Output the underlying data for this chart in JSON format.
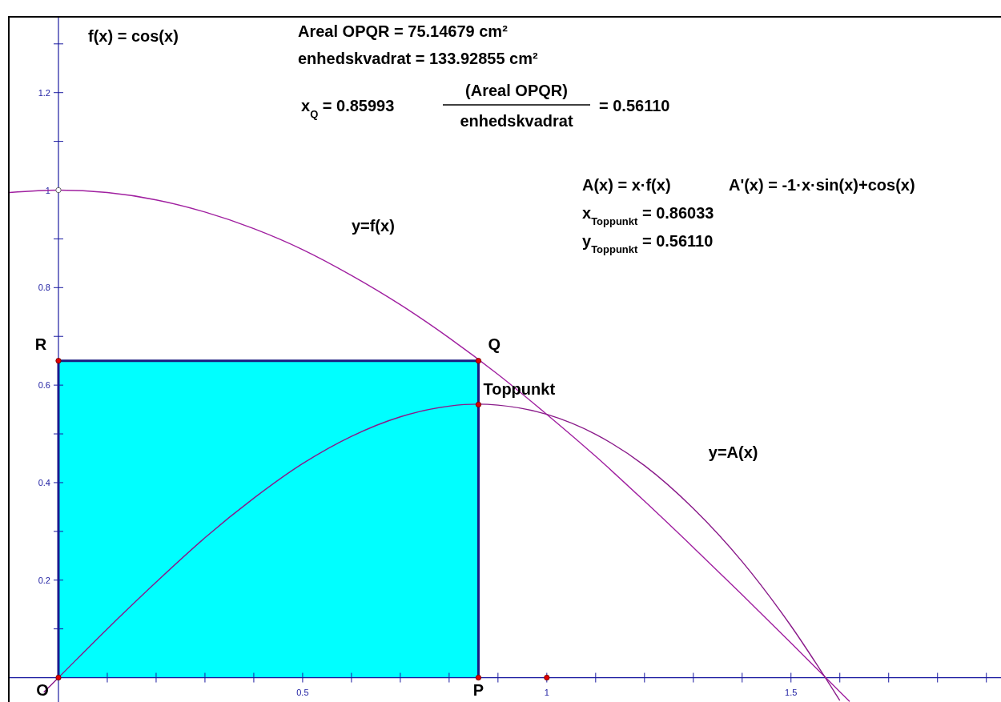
{
  "chart_data": {
    "type": "line",
    "xlim": [
      -0.1,
      1.93
    ],
    "ylim": [
      -0.05,
      1.39
    ],
    "xticks": [
      {
        "value": 0.1,
        "label": null
      },
      {
        "value": 0.2,
        "label": null
      },
      {
        "value": 0.3,
        "label": null
      },
      {
        "value": 0.4,
        "label": null
      },
      0.5,
      {
        "value": 0.6,
        "label": null
      },
      {
        "value": 0.7,
        "label": null
      },
      {
        "value": 0.8,
        "label": null
      },
      {
        "value": 0.9,
        "label": null
      },
      1,
      {
        "value": 1.1,
        "label": null
      },
      {
        "value": 1.2,
        "label": null
      },
      {
        "value": 1.3,
        "label": null
      },
      {
        "value": 1.4,
        "label": null
      },
      1.5,
      {
        "value": 1.6,
        "label": null
      },
      {
        "value": 1.7,
        "label": null
      },
      {
        "value": 1.8,
        "label": null
      },
      {
        "value": 1.9,
        "label": null
      }
    ],
    "yticks": [
      {
        "value": 0.1,
        "label": null
      },
      0.2,
      {
        "value": 0.3,
        "label": null
      },
      0.4,
      {
        "value": 0.5,
        "label": null
      },
      0.6,
      {
        "value": 0.7,
        "label": null
      },
      0.8,
      {
        "value": 0.9,
        "label": null
      },
      1,
      {
        "value": 1.1,
        "label": null
      },
      1.2,
      {
        "value": 1.3,
        "label": null
      }
    ],
    "grid": false,
    "series": [
      {
        "type": "area",
        "color": "#00ffff",
        "x": [
          0,
          0.86
        ],
        "values": [
          0.65,
          0.65
        ]
      },
      {
        "name": "y=f(x)",
        "color": "#a020a0",
        "x": [
          -0.1,
          0,
          0.1,
          0.2,
          0.3,
          0.4,
          0.5,
          0.6,
          0.7,
          0.8,
          0.9,
          1.0,
          1.1,
          1.2,
          1.3,
          1.4,
          1.5,
          1.6,
          1.62
        ],
        "values": [
          0.995,
          1,
          0.995,
          0.98,
          0.955,
          0.921,
          0.878,
          0.825,
          0.765,
          0.697,
          0.622,
          0.54,
          0.454,
          0.362,
          0.267,
          0.17,
          0.071,
          -0.029,
          -0.049
        ]
      },
      {
        "name": "y=A(x)",
        "color": "#8a1a8a",
        "x": [
          -0.03,
          0,
          0.1,
          0.2,
          0.3,
          0.4,
          0.5,
          0.6,
          0.7,
          0.8,
          0.86,
          0.9,
          1.0,
          1.1,
          1.2,
          1.3,
          1.4,
          1.5,
          1.6
        ],
        "values": [
          -0.03,
          0,
          0.1,
          0.196,
          0.287,
          0.368,
          0.439,
          0.495,
          0.535,
          0.557,
          0.561,
          0.559,
          0.54,
          0.499,
          0.435,
          0.347,
          0.238,
          0.106,
          -0.047
        ]
      },
      {
        "type": "scatter",
        "marker": "circle",
        "x": [
          0,
          0.86,
          0.86,
          0,
          0.86,
          1,
          0
        ],
        "values": [
          0,
          0,
          0.65,
          0.65,
          0.56,
          0,
          1
        ],
        "colors": [
          "#e00000",
          "#e00000",
          "#e00000",
          "#e00000",
          "#e00000",
          "#e00000",
          "#ffffff"
        ],
        "value_labels": [
          "O",
          "P",
          "Q",
          "R",
          "Toppunkt",
          null,
          null
        ]
      }
    ],
    "annotations": [
      "f(x) = cos(x)",
      "Areal OPQR = 75.14679 cm²",
      "enhedskvadrat = 133.92855 cm²",
      "x$_{Q}$ = 0.85993",
      "(Areal OPQR)",
      "enhedskvadrat",
      "= 0.56110",
      "A(x) = x·f(x)",
      "A'(x) = -1·x·sin(x)+cos(x)",
      "x$_{Toppunkt}$ = 0.86033",
      "y$_{Toppunkt}$ = 0.56110"
    ]
  }
}
